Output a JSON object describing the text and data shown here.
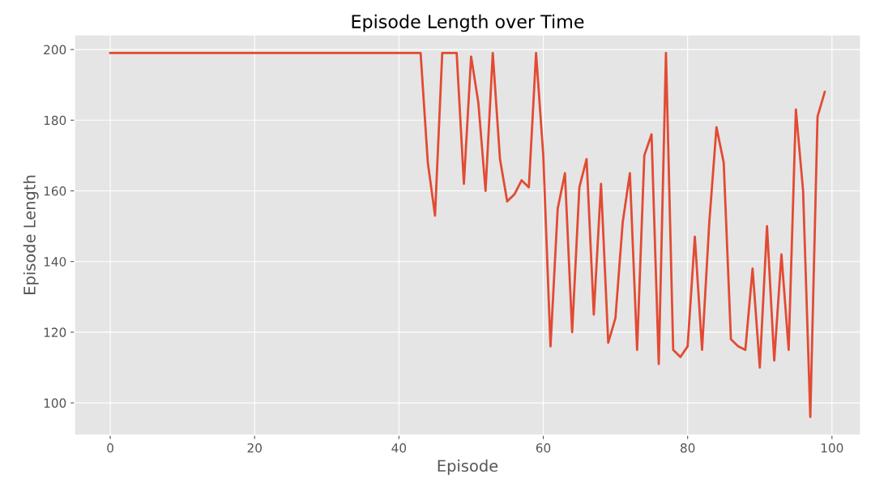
{
  "chart_data": {
    "type": "line",
    "title": "Episode Length over Time",
    "xlabel": "Episode",
    "ylabel": "Episode Length",
    "x": [
      0,
      1,
      2,
      3,
      4,
      5,
      6,
      7,
      8,
      9,
      10,
      11,
      12,
      13,
      14,
      15,
      16,
      17,
      18,
      19,
      20,
      21,
      22,
      23,
      24,
      25,
      26,
      27,
      28,
      29,
      30,
      31,
      32,
      33,
      34,
      35,
      36,
      37,
      38,
      39,
      40,
      41,
      42,
      43,
      44,
      45,
      46,
      47,
      48,
      49,
      50,
      51,
      52,
      53,
      54,
      55,
      56,
      57,
      58,
      59,
      60,
      61,
      62,
      63,
      64,
      65,
      66,
      67,
      68,
      69,
      70,
      71,
      72,
      73,
      74,
      75,
      76,
      77,
      78,
      79,
      80,
      81,
      82,
      83,
      84,
      85,
      86,
      87,
      88,
      89,
      90,
      91,
      92,
      93,
      94,
      95,
      96,
      97,
      98,
      99
    ],
    "series": [
      {
        "color": "#e24a33",
        "values": [
          199,
          199,
          199,
          199,
          199,
          199,
          199,
          199,
          199,
          199,
          199,
          199,
          199,
          199,
          199,
          199,
          199,
          199,
          199,
          199,
          199,
          199,
          199,
          199,
          199,
          199,
          199,
          199,
          199,
          199,
          199,
          199,
          199,
          199,
          199,
          199,
          199,
          199,
          199,
          199,
          199,
          199,
          199,
          199,
          168,
          153,
          199,
          199,
          199,
          162,
          198,
          185,
          160,
          199,
          169,
          157,
          159,
          163,
          161,
          199,
          170,
          116,
          155,
          165,
          120,
          161,
          169,
          125,
          162,
          117,
          124,
          151,
          165,
          115,
          170,
          176,
          111,
          199,
          115,
          113,
          116,
          147,
          115,
          151,
          178,
          168,
          118,
          116,
          115,
          138,
          110,
          150,
          112,
          142,
          115,
          183,
          160,
          96,
          181,
          188
        ]
      }
    ],
    "xlim": [
      -4.95,
      103.95
    ],
    "ylim": [
      90.85,
      204.15
    ],
    "xticks": [
      0,
      20,
      40,
      60,
      80,
      100
    ],
    "yticks": [
      100,
      120,
      140,
      160,
      180,
      200
    ],
    "grid": true,
    "legend": false,
    "marker": "none",
    "line_style": "solid"
  }
}
